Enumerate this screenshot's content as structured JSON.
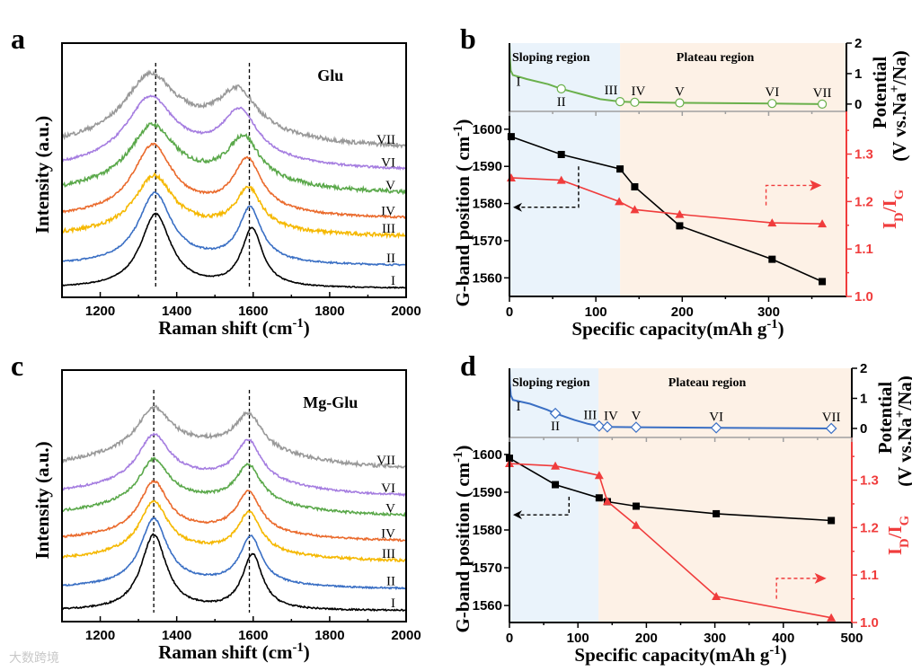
{
  "watermark": "大数跨境",
  "colors": {
    "sloping": "#eaf3fb",
    "plateau": "#fdf1e6",
    "red": "#f03c3c",
    "black": "#000000"
  },
  "chart_data": [
    {
      "panel": "a",
      "type": "line",
      "sample": "Glu",
      "xlabel": "Raman shift (cm^{-1})",
      "ylabel": "Intensity (a.u.)",
      "xlim": [
        1100,
        2000
      ],
      "xticks": [
        1200,
        1400,
        1600,
        1800,
        2000
      ],
      "ylim": [
        0,
        10
      ],
      "reference_lines": [
        1345,
        1590
      ],
      "series": [
        {
          "name": "I",
          "color": "#000000",
          "base": 0.35,
          "D": [
            1345,
            2.9,
            48
          ],
          "G": [
            1597,
            2.3,
            33
          ],
          "bg": 0,
          "noise": 0.02
        },
        {
          "name": "II",
          "color": "#3a6fc4",
          "base": 1.24,
          "D": [
            1343,
            2.7,
            52
          ],
          "G": [
            1592,
            2.1,
            36
          ],
          "bg": 0.15,
          "noise": 0.03
        },
        {
          "name": "III",
          "color": "#f5b800",
          "base": 2.4,
          "D": [
            1340,
            2.1,
            60
          ],
          "G": [
            1588,
            1.6,
            40
          ],
          "bg": 0.3,
          "noise": 0.07
        },
        {
          "name": "IV",
          "color": "#ea6a2c",
          "base": 3.1,
          "D": [
            1337,
            2.6,
            62
          ],
          "G": [
            1585,
            2.0,
            45
          ],
          "bg": 0.3,
          "noise": 0.04
        },
        {
          "name": "V",
          "color": "#5aa84a",
          "base": 4.1,
          "D": [
            1335,
            2.2,
            70
          ],
          "G": [
            1575,
            1.7,
            50
          ],
          "bg": 0.5,
          "noise": 0.08
        },
        {
          "name": "VI",
          "color": "#a57de0",
          "base": 5.0,
          "D": [
            1330,
            2.4,
            75
          ],
          "G": [
            1565,
            1.8,
            55
          ],
          "bg": 0.5,
          "noise": 0.04
        },
        {
          "name": "VII",
          "color": "#999999",
          "base": 5.9,
          "D": [
            1330,
            2.3,
            80
          ],
          "G": [
            1560,
            1.6,
            60
          ],
          "bg": 0.6,
          "noise": 0.08
        }
      ]
    },
    {
      "panel": "c",
      "type": "line",
      "sample": "Mg-Glu",
      "xlabel": "Raman shift (cm^{-1})",
      "ylabel": "Intensity (a.u.)",
      "xlim": [
        1100,
        2000
      ],
      "xticks": [
        1200,
        1400,
        1600,
        1800,
        2000
      ],
      "ylim": [
        0,
        10
      ],
      "reference_lines": [
        1340,
        1590
      ],
      "series": [
        {
          "name": "I",
          "color": "#000000",
          "base": 0.43,
          "D": [
            1340,
            3.0,
            40
          ],
          "G": [
            1598,
            2.2,
            32
          ],
          "bg": 0,
          "noise": 0.03
        },
        {
          "name": "II",
          "color": "#3a6fc4",
          "base": 1.3,
          "D": [
            1340,
            2.6,
            42
          ],
          "G": [
            1594,
            1.9,
            34
          ],
          "bg": 0.2,
          "noise": 0.03
        },
        {
          "name": "III",
          "color": "#f5b800",
          "base": 2.4,
          "D": [
            1340,
            2.0,
            45
          ],
          "G": [
            1590,
            1.6,
            36
          ],
          "bg": 0.4,
          "noise": 0.05
        },
        {
          "name": "IV",
          "color": "#ea6a2c",
          "base": 3.2,
          "D": [
            1340,
            2.0,
            45
          ],
          "G": [
            1588,
            1.6,
            38
          ],
          "bg": 0.4,
          "noise": 0.04
        },
        {
          "name": "V",
          "color": "#5aa84a",
          "base": 4.2,
          "D": [
            1340,
            1.7,
            48
          ],
          "G": [
            1588,
            1.5,
            40
          ],
          "bg": 0.6,
          "noise": 0.05
        },
        {
          "name": "VI",
          "color": "#a57de0",
          "base": 5.0,
          "D": [
            1340,
            1.8,
            50
          ],
          "G": [
            1588,
            1.6,
            40
          ],
          "bg": 0.7,
          "noise": 0.04
        },
        {
          "name": "VII",
          "color": "#999999",
          "base": 6.1,
          "D": [
            1340,
            1.6,
            52
          ],
          "G": [
            1588,
            1.4,
            42
          ],
          "bg": 0.9,
          "noise": 0.07
        }
      ]
    },
    {
      "panel": "b",
      "type": "line",
      "xlabel": "Specific capacity(mAh g^{-1})",
      "ylabel": "G-band position ( cm^{-1})",
      "ylabel_right": "I_{D}/I_{G}",
      "potential_label": "Potential",
      "potential_unit": "(V vs.Na^{+}/Na)",
      "xlim": [
        0,
        390
      ],
      "xticks": [
        0,
        100,
        200,
        300
      ],
      "ylim": [
        1555,
        1604.8
      ],
      "yticks": [
        1560,
        1570,
        1580,
        1590,
        1600
      ],
      "ylim_right": [
        1.0,
        1.39
      ],
      "yticks_right": [
        1.0,
        1.1,
        1.2,
        1.3
      ],
      "potential_lim": [
        -0.24,
        2.0
      ],
      "potential_ticks": [
        0,
        1,
        2
      ],
      "regions": [
        {
          "label": "Sloping region",
          "range": [
            0,
            128
          ]
        },
        {
          "label": "Plateau region",
          "range": [
            128,
            390
          ]
        }
      ],
      "potential_color": "#6ab04c",
      "potential_curve": [
        [
          0,
          2.0
        ],
        [
          0.5,
          1.5
        ],
        [
          1.5,
          1.1
        ],
        [
          4,
          0.95
        ],
        [
          20,
          0.82
        ],
        [
          45,
          0.65
        ],
        [
          60,
          0.5
        ],
        [
          80,
          0.35
        ],
        [
          105,
          0.16
        ],
        [
          128,
          0.08
        ],
        [
          145,
          0.06
        ],
        [
          197,
          0.04
        ],
        [
          304,
          0.02
        ],
        [
          362,
          0.0
        ]
      ],
      "states": [
        {
          "label": "I",
          "x": 0,
          "p": 0.95
        },
        {
          "label": "II",
          "x": 60,
          "p": 0.5
        },
        {
          "label": "III",
          "x": 128,
          "p": 0.08
        },
        {
          "label": "IV",
          "x": 145,
          "p": 0.06
        },
        {
          "label": "V",
          "x": 197,
          "p": 0.04
        },
        {
          "label": "VI",
          "x": 304,
          "p": 0.02
        },
        {
          "label": "VII",
          "x": 362,
          "p": 0.0
        }
      ],
      "series": [
        {
          "name": "G-band position",
          "axis": "left",
          "marker": "square",
          "color": "#000000",
          "x": [
            2,
            60,
            128,
            145,
            197,
            304,
            362
          ],
          "y": [
            1598,
            1593.2,
            1589.3,
            1584.5,
            1574,
            1565,
            1559
          ]
        },
        {
          "name": "ID/IG",
          "axis": "right",
          "marker": "triangle",
          "color": "#f03c3c",
          "x": [
            2,
            60,
            127,
            145,
            197,
            304,
            362
          ],
          "y": [
            1.25,
            1.245,
            1.2,
            1.183,
            1.173,
            1.155,
            1.153
          ]
        }
      ]
    },
    {
      "panel": "d",
      "type": "line",
      "xlabel": "Specific capacity(mAh g^{-1})",
      "ylabel": "G-band position ( cm^{-1})",
      "ylabel_right": "I_{D}/I_{G}",
      "potential_label": "Potential",
      "potential_unit": "(V vs.Na^{+}/Na)",
      "xlim": [
        0,
        500
      ],
      "xticks": [
        0,
        100,
        200,
        300,
        400,
        500
      ],
      "ylim": [
        1555.5,
        1604.5
      ],
      "yticks": [
        1560,
        1570,
        1580,
        1590,
        1600
      ],
      "ylim_right": [
        1.0,
        1.39
      ],
      "yticks_right": [
        1.0,
        1.1,
        1.2,
        1.3
      ],
      "potential_lim": [
        -0.3,
        2.0
      ],
      "potential_ticks": [
        0,
        1,
        2
      ],
      "regions": [
        {
          "label": "Sloping region",
          "range": [
            0,
            130
          ]
        },
        {
          "label": "Plateau region",
          "range": [
            130,
            500
          ]
        }
      ],
      "potential_color": "#3a6fc4",
      "potential_curve": [
        [
          0,
          2.0
        ],
        [
          0.5,
          1.5
        ],
        [
          2,
          1.1
        ],
        [
          5,
          0.95
        ],
        [
          30,
          0.82
        ],
        [
          55,
          0.62
        ],
        [
          67,
          0.5
        ],
        [
          95,
          0.28
        ],
        [
          115,
          0.15
        ],
        [
          131,
          0.08
        ],
        [
          143,
          0.05
        ],
        [
          185,
          0.04
        ],
        [
          302,
          0.02
        ],
        [
          470,
          0.0
        ]
      ],
      "states": [
        {
          "label": "I",
          "x": 0,
          "p": 0.95
        },
        {
          "label": "II",
          "x": 67,
          "p": 0.5
        },
        {
          "label": "III",
          "x": 131,
          "p": 0.08
        },
        {
          "label": "IV",
          "x": 143,
          "p": 0.05
        },
        {
          "label": "V",
          "x": 185,
          "p": 0.04
        },
        {
          "label": "VI",
          "x": 302,
          "p": 0.02
        },
        {
          "label": "VII",
          "x": 470,
          "p": 0.0
        }
      ],
      "series": [
        {
          "name": "G-band position",
          "axis": "left",
          "marker": "square",
          "color": "#000000",
          "x": [
            0,
            67,
            131,
            143,
            185,
            302,
            470
          ],
          "y": [
            1599,
            1592,
            1588.5,
            1587.5,
            1586.3,
            1584.3,
            1582.5
          ]
        },
        {
          "name": "ID/IG",
          "axis": "right",
          "marker": "triangle",
          "color": "#f03c3c",
          "x": [
            0,
            67,
            131,
            143,
            185,
            302,
            470
          ],
          "y": [
            1.335,
            1.33,
            1.31,
            1.255,
            1.205,
            1.055,
            1.01
          ]
        }
      ]
    }
  ]
}
